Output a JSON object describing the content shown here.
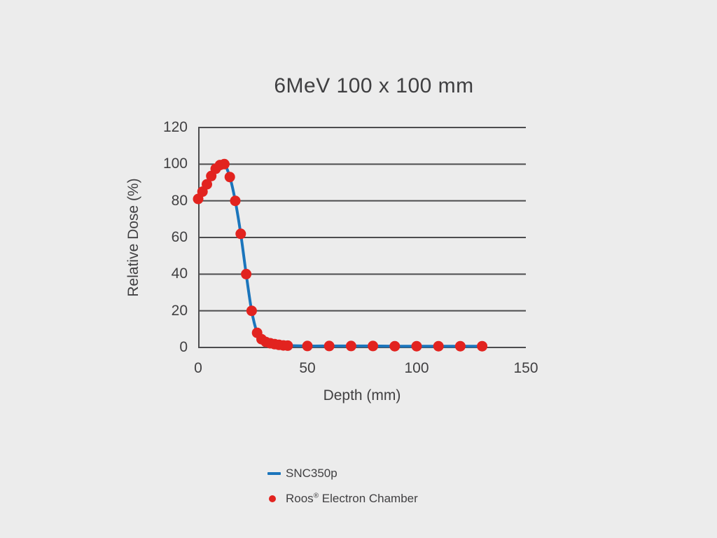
{
  "colors": {
    "background": "#ececec",
    "grid": "#4c4c4e",
    "text": "#414042",
    "snc_blue": "#1b75bc",
    "roos_red": "#e2231f"
  },
  "chart": {
    "title": "6MeV 100 x 100 mm",
    "x_axis": {
      "label": "Depth (mm)"
    },
    "y_axis": {
      "label": "Relative Dose (%)"
    }
  },
  "legend": {
    "items": [
      {
        "label": "SNC350p",
        "marker": "line-swatch",
        "color": "#1b75bc"
      },
      {
        "label": "Roos® Electron Chamber",
        "label_brand": "Roos",
        "label_reg": "®",
        "label_rest": " Electron Chamber",
        "marker": "dot-swatch",
        "color": "#e2231f"
      }
    ]
  },
  "chart_data": {
    "type": "line",
    "title": "6MeV 100 x 100 mm",
    "xlabel": "Depth (mm)",
    "ylabel": "Relative Dose (%)",
    "xlim": [
      0,
      150
    ],
    "ylim": [
      0,
      120
    ],
    "x_ticks": [
      0,
      50,
      100,
      150
    ],
    "y_ticks": [
      0,
      20,
      40,
      60,
      80,
      100,
      120
    ],
    "grid": "horizontal",
    "legend_position": "bottom-left",
    "x": [
      0,
      2,
      4,
      6,
      8,
      10,
      12,
      14.5,
      17,
      19.5,
      22,
      24.5,
      27,
      29,
      31,
      33,
      35,
      37,
      39,
      41,
      50,
      60,
      70,
      80,
      90,
      100,
      110,
      120,
      130
    ],
    "series": [
      {
        "name": "SNC350p",
        "type": "line",
        "color": "#1b75bc",
        "values": [
          81,
          85,
          89,
          93.5,
          97.5,
          99.5,
          100,
          93,
          80,
          62,
          40,
          20,
          8,
          4.5,
          3,
          2.3,
          1.8,
          1.4,
          1.1,
          1,
          0.8,
          0.8,
          0.8,
          0.8,
          0.7,
          0.7,
          0.7,
          0.7,
          0.7
        ]
      },
      {
        "name": "Roos® Electron Chamber",
        "type": "scatter",
        "color": "#e2231f",
        "values": [
          81,
          85,
          89,
          93.5,
          97.5,
          99.5,
          100,
          93,
          80,
          62,
          40,
          20,
          8,
          4.5,
          3,
          2.3,
          1.8,
          1.4,
          1.1,
          1,
          0.8,
          0.8,
          0.8,
          0.8,
          0.7,
          0.7,
          0.7,
          0.7,
          0.7
        ]
      }
    ]
  }
}
